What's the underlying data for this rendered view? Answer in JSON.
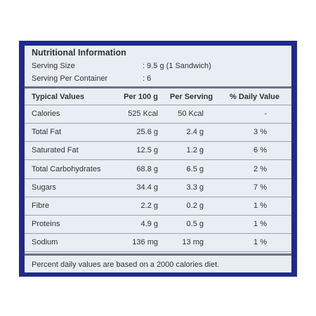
{
  "header": {
    "title": "Nutritional Information"
  },
  "serving": {
    "rows": [
      [
        "Serving Size",
        ": 9.5 g (1 Sandwich)"
      ],
      [
        "Serving Per Container",
        ": 6"
      ]
    ]
  },
  "table": {
    "columns": [
      "Typical Values",
      "Per 100 g",
      "Per Serving",
      "% Daily Value"
    ],
    "rows": [
      [
        "Calories",
        "525 Kcal",
        "50 Kcal",
        "-"
      ],
      [
        "Total Fat",
        "25.6 g",
        "2.4 g",
        "3 %"
      ],
      [
        "Saturated Fat",
        "12.5 g",
        "1.2 g",
        "6 %"
      ],
      [
        "Total Carbohydrates",
        "68.8 g",
        "6.5 g",
        "2 %"
      ],
      [
        "Sugars",
        "34.4 g",
        "3.3 g",
        "7 %"
      ],
      [
        "Fibre",
        "2.2 g",
        "0.2 g",
        "1 %"
      ],
      [
        "Proteins",
        "4.9 g",
        "0.5 g",
        "1 %"
      ],
      [
        "Sodium",
        "136 mg",
        "13 mg",
        "1 %"
      ]
    ]
  },
  "footer": {
    "note": "Percent daily values are based on a 2000 calories diet."
  }
}
